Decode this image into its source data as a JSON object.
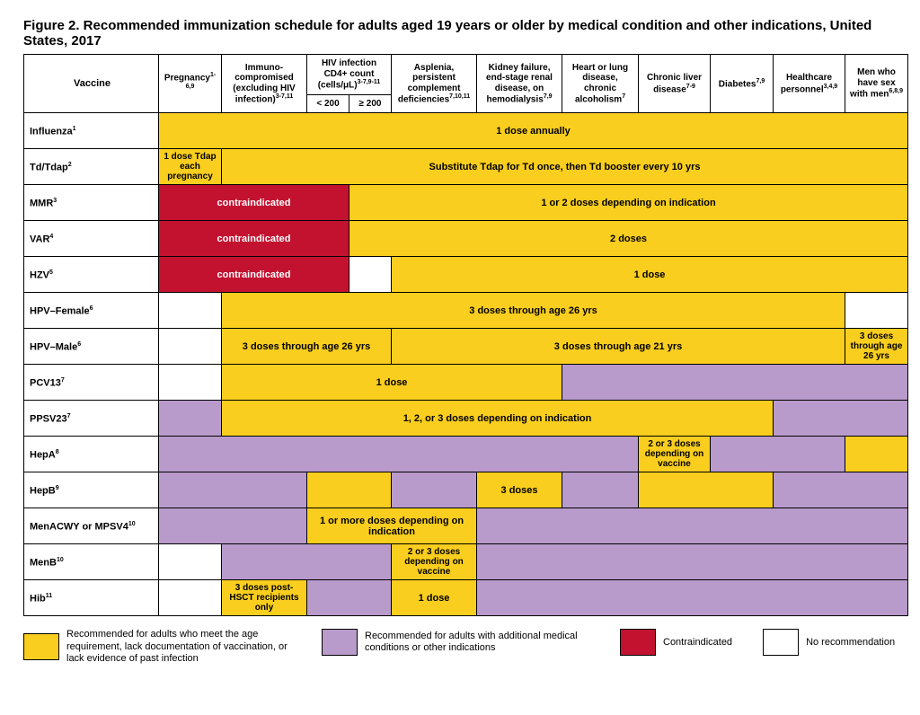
{
  "title": "Figure 2. Recommended immunization schedule for adults aged 19 years or older by medical condition and other indications, United States, 2017",
  "colors": {
    "yellow": "#f9ce1e",
    "purple": "#b99bcb",
    "red": "#c31230",
    "white": "#ffffff",
    "border": "#000000"
  },
  "columns": {
    "vaccine": "Vaccine",
    "pregnancy": "Pregnancy<sup>1-6,9</sup>",
    "immuno": "Immuno-compromised (excluding HIV infection)<sup>3-7,11</sup>",
    "hiv_group": "HIV infection CD4+ count (cells/μL)<sup>3-7,9-11</sup>",
    "hiv_lt": "< 200",
    "hiv_ge": "≥ 200",
    "asplenia": "Asplenia, persistent complement deficiencies<sup>7,10,11</sup>",
    "kidney": "Kidney failure, end-stage renal disease, on hemodialysis<sup>7,9</sup>",
    "heart": "Heart or lung disease, chronic alcoholism<sup>7</sup>",
    "liver": "Chronic liver disease<sup>7-9</sup>",
    "diabetes": "Diabetes<sup>7,9</sup>",
    "hcp": "Healthcare personnel<sup>3,4,9</sup>",
    "msm": "Men who have sex with men<sup>6,8,9</sup>"
  },
  "vaccines": {
    "influenza": "Influenza<sup>1</sup>",
    "tdtdap": "Td/Tdap<sup>2</sup>",
    "mmr": "MMR<sup>3</sup>",
    "var": "VAR<sup>4</sup>",
    "hzv": "HZV<sup>5</sup>",
    "hpvf": "HPV–Female<sup>6</sup>",
    "hpvm": "HPV–Male<sup>6</sup>",
    "pcv13": "PCV13<sup>7</sup>",
    "ppsv23": "PPSV23<sup>7</sup>",
    "hepa": "HepA<sup>8</sup>",
    "hepb": "HepB<sup>9</sup>",
    "menacwy": "MenACWY or MPSV4<sup>10</sup>",
    "menb": "MenB<sup>10</sup>",
    "hib": "Hib<sup>11</sup>"
  },
  "text": {
    "dose_annual": "1 dose annually",
    "tdap_preg": "1 dose Tdap each pregnancy",
    "tdap_sub": "Substitute Tdap for Td once, then Td booster every 10 yrs",
    "contra": "contraindicated",
    "mmr_dose": "1 or 2 doses depending on indication",
    "var_dose": "2 doses",
    "hzv_dose": "1 dose",
    "hpv26": "3 doses through age 26 yrs",
    "hpv21": "3 doses through age 21 yrs",
    "pcv_dose": "1 dose",
    "ppsv_dose": "1, 2, or 3 doses depending on indication",
    "hepa_dose": "2 or 3 doses depending on vaccine",
    "hepb_dose": "3 doses",
    "men_dose": "1 or more doses depending on indication",
    "menb_dose": "2 or 3 doses depending on vaccine",
    "hib_hsct": "3 doses post-HSCT recipients only",
    "hib_dose": "1 dose"
  },
  "legend": {
    "yellow": "Recommended for adults who meet the age requirement, lack documentation of vaccination, or lack evidence of past infection",
    "purple": "Recommended for adults with additional medical conditions or other indications",
    "red": "Contraindicated",
    "white": "No recommendation"
  }
}
